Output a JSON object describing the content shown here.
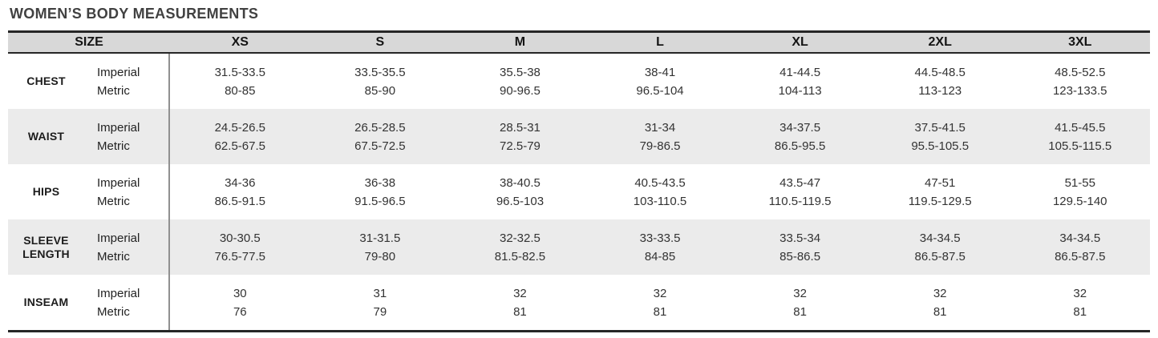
{
  "title": "WOMEN’S BODY MEASUREMENTS",
  "colors": {
    "header_bg": "#d8d8d8",
    "alt_row_bg": "#ebebeb",
    "rule_dark": "#262626",
    "divider_gray": "#909090",
    "title_text": "#414141"
  },
  "chart_data": {
    "type": "table",
    "title": "WOMEN’S BODY MEASUREMENTS",
    "size_header": "SIZE",
    "sizes": [
      "XS",
      "S",
      "M",
      "L",
      "XL",
      "2XL",
      "3XL"
    ],
    "unit_labels": {
      "imperial": "Imperial",
      "metric": "Metric"
    },
    "rows": [
      {
        "label": "CHEST",
        "imperial": [
          "31.5-33.5",
          "33.5-35.5",
          "35.5-38",
          "38-41",
          "41-44.5",
          "44.5-48.5",
          "48.5-52.5"
        ],
        "metric": [
          "80-85",
          "85-90",
          "90-96.5",
          "96.5-104",
          "104-113",
          "113-123",
          "123-133.5"
        ]
      },
      {
        "label": "WAIST",
        "imperial": [
          "24.5-26.5",
          "26.5-28.5",
          "28.5-31",
          "31-34",
          "34-37.5",
          "37.5-41.5",
          "41.5-45.5"
        ],
        "metric": [
          "62.5-67.5",
          "67.5-72.5",
          "72.5-79",
          "79-86.5",
          "86.5-95.5",
          "95.5-105.5",
          "105.5-115.5"
        ]
      },
      {
        "label": "HIPS",
        "imperial": [
          "34-36",
          "36-38",
          "38-40.5",
          "40.5-43.5",
          "43.5-47",
          "47-51",
          "51-55"
        ],
        "metric": [
          "86.5-91.5",
          "91.5-96.5",
          "96.5-103",
          "103-110.5",
          "110.5-119.5",
          "119.5-129.5",
          "129.5-140"
        ]
      },
      {
        "label": "SLEEVE LENGTH",
        "imperial": [
          "30-30.5",
          "31-31.5",
          "32-32.5",
          "33-33.5",
          "33.5-34",
          "34-34.5",
          "34-34.5"
        ],
        "metric": [
          "76.5-77.5",
          "79-80",
          "81.5-82.5",
          "84-85",
          "85-86.5",
          "86.5-87.5",
          "86.5-87.5"
        ]
      },
      {
        "label": "INSEAM",
        "imperial": [
          "30",
          "31",
          "32",
          "32",
          "32",
          "32",
          "32"
        ],
        "metric": [
          "76",
          "79",
          "81",
          "81",
          "81",
          "81",
          "81"
        ]
      }
    ]
  }
}
